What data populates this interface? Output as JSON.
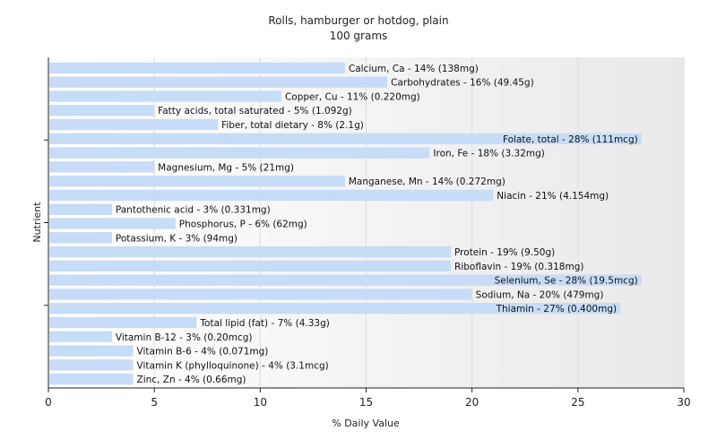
{
  "chart_data": {
    "type": "bar",
    "orientation": "horizontal",
    "title": "Rolls, hamburger or hotdog, plain",
    "subtitle": "100 grams",
    "xlabel": "% Daily Value",
    "ylabel": "Nutrient",
    "xlim": [
      0,
      30
    ],
    "xticks": [
      0,
      5,
      10,
      15,
      20,
      25,
      30
    ],
    "grid": true,
    "bar_color": "#c6dcf7",
    "categories": [
      "Calcium, Ca",
      "Carbohydrates",
      "Copper, Cu",
      "Fatty acids, total saturated",
      "Fiber, total dietary",
      "Folate, total",
      "Iron, Fe",
      "Magnesium, Mg",
      "Manganese, Mn",
      "Niacin",
      "Pantothenic acid",
      "Phosphorus, P",
      "Potassium, K",
      "Protein",
      "Riboflavin",
      "Selenium, Se",
      "Sodium, Na",
      "Thiamin",
      "Total lipid (fat)",
      "Vitamin B-12",
      "Vitamin B-6",
      "Vitamin K (phylloquinone)",
      "Zinc, Zn"
    ],
    "values": [
      14,
      16,
      11,
      5,
      8,
      28,
      18,
      5,
      14,
      21,
      3,
      6,
      3,
      19,
      19,
      28,
      20,
      27,
      7,
      3,
      4,
      4,
      4
    ],
    "labels": [
      "Calcium, Ca - 14% (138mg)",
      "Carbohydrates - 16% (49.45g)",
      "Copper, Cu - 11% (0.220mg)",
      "Fatty acids, total saturated - 5% (1.092g)",
      "Fiber, total dietary - 8% (2.1g)",
      "Folate, total - 28% (111mcg)",
      "Iron, Fe - 18% (3.32mg)",
      "Magnesium, Mg - 5% (21mg)",
      "Manganese, Mn - 14% (0.272mg)",
      "Niacin - 21% (4.154mg)",
      "Pantothenic acid - 3% (0.331mg)",
      "Phosphorus, P - 6% (62mg)",
      "Potassium, K - 3% (94mg)",
      "Protein - 19% (9.50g)",
      "Riboflavin - 19% (0.318mg)",
      "Selenium, Se - 28% (19.5mcg)",
      "Sodium, Na - 20% (479mg)",
      "Thiamin - 27% (0.400mg)",
      "Total lipid (fat) - 7% (4.33g)",
      "Vitamin B-12 - 3% (0.20mcg)",
      "Vitamin B-6 - 4% (0.071mg)",
      "Vitamin K (phylloquinone) - 4% (3.1mcg)",
      "Zinc, Zn - 4% (0.66mg)"
    ]
  }
}
